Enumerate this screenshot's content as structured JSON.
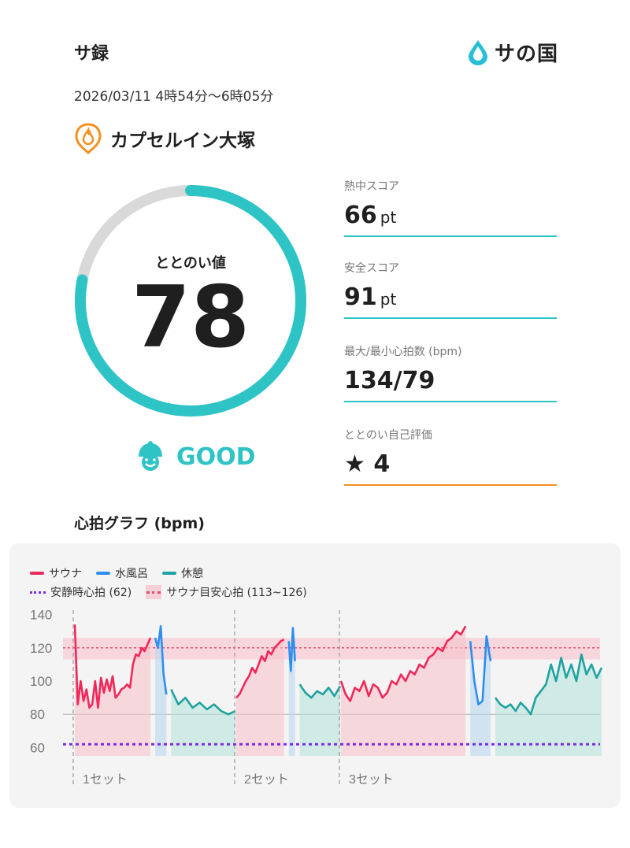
{
  "header": {
    "title": "サ録",
    "brand_text": "サの国",
    "datetime": "2026/03/11 4時54分〜6時05分",
    "facility": "カプセルイン大塚"
  },
  "gauge": {
    "label": "ととのい値",
    "value": "78",
    "fraction": 0.78,
    "rating": "GOOD",
    "color": "#2ec4c6"
  },
  "stats": [
    {
      "label": "熱中スコア",
      "value": "66",
      "unit": "pt"
    },
    {
      "label": "安全スコア",
      "value": "91",
      "unit": "pt"
    },
    {
      "label": "最大/最小心拍数 (bpm)",
      "value": "134/79",
      "unit": ""
    },
    {
      "label": "ととのい自己評価",
      "value": "★ 4",
      "unit": ""
    }
  ],
  "graph": {
    "title": "心拍グラフ (bpm)",
    "legend": {
      "sauna": "サウナ",
      "cold": "水風呂",
      "rest": "休憩",
      "resting_hr": "安静時心拍 (62)",
      "target_hr": "サウナ目安心拍 (113~126)"
    },
    "colors": {
      "sauna": "#f2275a",
      "cold": "#2b8ff0",
      "rest": "#1fa3a0",
      "transition": "#8c8c8c",
      "resting": "#7a2fe0",
      "band": "#f7cfd7"
    }
  },
  "chart_data": {
    "type": "line",
    "y_ticks": [
      140,
      120,
      100,
      80,
      60
    ],
    "ylim": [
      55,
      145
    ],
    "resting_hr": 62,
    "target_band": [
      113,
      126
    ],
    "set_labels": [
      "1セット",
      "2セット",
      "3セット"
    ],
    "sets": [
      {
        "sauna": [
          134,
          86,
          100,
          88,
          95,
          84,
          86,
          100,
          84,
          102,
          93,
          101,
          94,
          103,
          90,
          92,
          95,
          96,
          98,
          96,
          110,
          116,
          115,
          120,
          118,
          122,
          126
        ],
        "cold": [
          126,
          120,
          133,
          104,
          92
        ],
        "rest": [
          95,
          86,
          90,
          84,
          87,
          83,
          86,
          82,
          80,
          82
        ],
        "transition": [
          126,
          120,
          95,
          98,
          90,
          85,
          80,
          88,
          100
        ]
      },
      {
        "sauna": [
          90,
          92,
          96,
          100,
          103,
          108,
          105,
          110,
          115,
          112,
          118,
          116,
          120,
          122,
          124,
          125
        ],
        "cold": [
          124,
          106,
          132,
          112
        ],
        "rest": [
          98,
          93,
          90,
          94,
          92,
          96,
          91,
          97
        ],
        "transition": [
          125,
          128,
          110,
          105,
          130,
          120,
          100,
          98
        ]
      },
      {
        "sauna": [
          100,
          92,
          88,
          96,
          94,
          100,
          91,
          98,
          96,
          90,
          93,
          100,
          98,
          104,
          100,
          106,
          104,
          110,
          108,
          114,
          116,
          120,
          118,
          124,
          126,
          130,
          128,
          133
        ],
        "cold": [
          124,
          100,
          86,
          88,
          127,
          112
        ],
        "rest": [
          90,
          86,
          84,
          86,
          82,
          87,
          84,
          80,
          90,
          94,
          98,
          110,
          100,
          114,
          102,
          110,
          100,
          116,
          104,
          110,
          102,
          108
        ],
        "transition": [
          132,
          126,
          100,
          96,
          90,
          100,
          112,
          116
        ]
      }
    ]
  }
}
